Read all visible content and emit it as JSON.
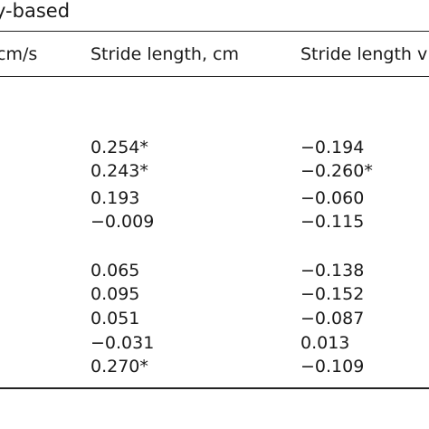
{
  "table": {
    "title": "y-based",
    "headers": [
      "cm/s",
      "Stride length, cm",
      "Stride length v"
    ],
    "groups": [
      {
        "rows": [
          [
            "0.254*",
            "−0.194"
          ],
          [
            "0.243*",
            "−0.260*"
          ],
          [
            "0.193",
            "−0.060"
          ],
          [
            "−0.009",
            "−0.115"
          ]
        ]
      },
      {
        "rows": [
          [
            "0.065",
            "−0.138"
          ],
          [
            "0.095",
            "−0.152"
          ],
          [
            "0.051",
            "−0.087"
          ],
          [
            "−0.031",
            "0.013"
          ],
          [
            "0.270*",
            "−0.109"
          ]
        ]
      }
    ]
  }
}
